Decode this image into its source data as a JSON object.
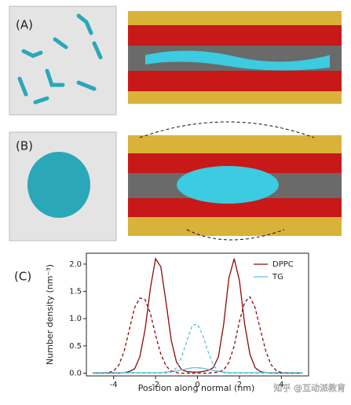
{
  "panels": {
    "a": "(A)",
    "b": "(B)",
    "c": "(C)"
  },
  "watermark": "知乎 @互动派教育",
  "chart_data": {
    "type": "line",
    "xlabel": "Position along normal (nm)",
    "ylabel": "Number density (nm⁻³)",
    "x": [
      -5,
      -4.75,
      -4.5,
      -4.25,
      -4,
      -3.75,
      -3.5,
      -3.25,
      -3,
      -2.75,
      -2.5,
      -2.25,
      -2,
      -1.75,
      -1.5,
      -1.25,
      -1,
      -0.75,
      -0.5,
      -0.25,
      0,
      0.25,
      0.5,
      0.75,
      1,
      1.25,
      1.5,
      1.75,
      2,
      2.25,
      2.5,
      2.75,
      3,
      3.25,
      3.5,
      3.75,
      4,
      4.25,
      4.5,
      4.75,
      5
    ],
    "series": [
      {
        "name": "DPPC",
        "color": "#8b0a0a",
        "dashed": false,
        "values": [
          0,
          0,
          0,
          0,
          0,
          0,
          0.01,
          0.03,
          0.08,
          0.3,
          0.8,
          1.55,
          2.1,
          1.95,
          1.3,
          0.6,
          0.2,
          0.06,
          0.03,
          0.02,
          0.02,
          0.03,
          0.05,
          0.1,
          0.3,
          0.9,
          1.75,
          2.1,
          1.7,
          0.9,
          0.35,
          0.1,
          0.03,
          0.01,
          0,
          0,
          0,
          0,
          0,
          0,
          0
        ]
      },
      {
        "name": "TG",
        "color": "#5bc0de",
        "dashed": false,
        "values": [
          0.01,
          0.01,
          0.01,
          0.01,
          0.01,
          0.01,
          0.01,
          0.01,
          0.01,
          0.01,
          0.01,
          0.01,
          0.01,
          0.01,
          0.02,
          0.03,
          0.04,
          0.06,
          0.08,
          0.1,
          0.1,
          0.09,
          0.07,
          0.05,
          0.03,
          0.02,
          0.01,
          0.01,
          0.01,
          0.01,
          0.01,
          0.01,
          0.01,
          0.01,
          0.01,
          0.01,
          0.01,
          0.01,
          0.01,
          0.01,
          0.01
        ]
      },
      {
        "name": "DPPC",
        "color": "#8b0a0a",
        "dashed": true,
        "values": [
          0,
          0,
          0,
          0.01,
          0.04,
          0.15,
          0.4,
          0.8,
          1.2,
          1.38,
          1.35,
          1.1,
          0.7,
          0.35,
          0.13,
          0.04,
          0.01,
          0,
          0,
          0,
          0,
          0,
          0,
          0.01,
          0.02,
          0.06,
          0.2,
          0.5,
          0.95,
          1.3,
          1.4,
          1.2,
          0.8,
          0.42,
          0.16,
          0.05,
          0.01,
          0,
          0,
          0,
          0
        ]
      },
      {
        "name": "TG",
        "color": "#5bc0de",
        "dashed": true,
        "values": [
          0,
          0,
          0,
          0,
          0,
          0,
          0,
          0,
          0,
          0,
          0,
          0,
          0,
          0,
          0,
          0.02,
          0.1,
          0.3,
          0.6,
          0.88,
          0.9,
          0.7,
          0.4,
          0.15,
          0.04,
          0.01,
          0,
          0,
          0,
          0,
          0,
          0,
          0,
          0,
          0,
          0,
          0,
          0,
          0,
          0,
          0
        ]
      }
    ],
    "xlim": [
      -5.3,
      5.3
    ],
    "xticks": [
      -4,
      -2,
      0,
      2,
      4
    ],
    "ylim": [
      -0.05,
      2.2
    ],
    "yticks": [
      {
        "value": 0,
        "label": "0.0"
      },
      {
        "value": 0.5,
        "label": "0.5"
      },
      {
        "value": 1,
        "label": "1.0"
      },
      {
        "value": 1.5,
        "label": "1.5"
      },
      {
        "value": 2,
        "label": "2.0"
      }
    ],
    "legend": "upper right"
  }
}
